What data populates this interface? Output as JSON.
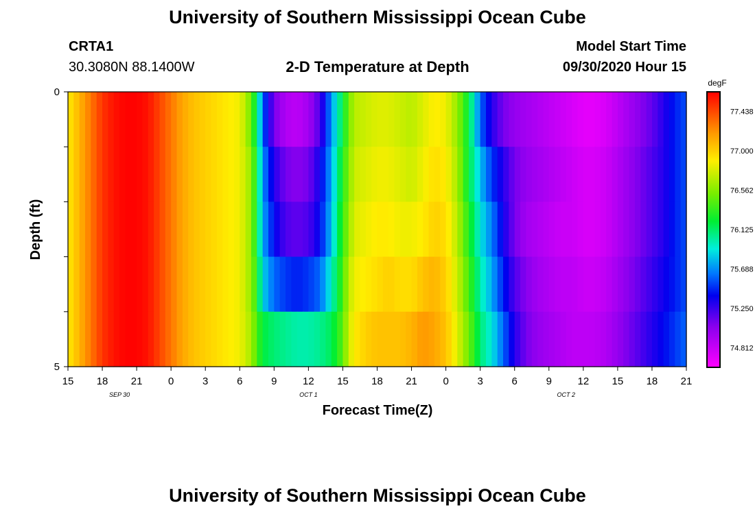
{
  "header": {
    "title": "University of Southern Mississippi Ocean Cube",
    "station_id": "CRTA1",
    "station_coords": "30.3080N 88.1400W",
    "plot_title": "2-D Temperature at Depth",
    "model_start_label": "Model Start Time",
    "model_start_value": "09/30/2020 Hour 15"
  },
  "footer": {
    "title": "University of Southern Mississippi Ocean Cube"
  },
  "chart_data": {
    "type": "heatmap",
    "title": "2-D Temperature at Depth",
    "xlabel": "Forecast Time(Z)",
    "ylabel": "Depth (ft)",
    "x_tick_labels": [
      "15",
      "18",
      "21",
      "0",
      "3",
      "6",
      "9",
      "12",
      "15",
      "18",
      "21",
      "0",
      "3",
      "6",
      "9",
      "12",
      "15",
      "18",
      "21"
    ],
    "x_date_labels": [
      {
        "label": "SEP 30",
        "hour_index": 4.5
      },
      {
        "label": "OCT 1",
        "hour_index": 21
      },
      {
        "label": "OCT 2",
        "hour_index": 43.5
      }
    ],
    "x_hours_from_start": [
      0,
      54
    ],
    "y_range": [
      0,
      5
    ],
    "y_tick_labels": [
      "0",
      "5"
    ],
    "y_minor_ticks": [
      1,
      2,
      3,
      4
    ],
    "depth_layers": [
      0,
      1,
      2,
      3,
      4
    ],
    "colorbar": {
      "unit": "degF",
      "range": [
        74.594,
        77.656
      ],
      "tick_labels": [
        "77.438",
        "77.000",
        "76.562",
        "76.125",
        "75.688",
        "75.250",
        "74.812"
      ],
      "tick_values": [
        77.438,
        77.0,
        76.562,
        76.125,
        75.688,
        75.25,
        74.812
      ]
    },
    "colors": {
      "hot": "#ff0000",
      "cold": "#ff00ff"
    },
    "temperature_profile": {
      "description_hours": [
        0,
        1,
        2,
        3,
        4,
        5,
        6,
        7,
        8,
        9,
        10,
        11,
        12,
        13,
        14,
        15,
        16,
        16.5,
        17,
        18,
        19,
        20,
        21,
        22,
        23,
        24,
        24.5,
        25,
        26,
        27,
        28,
        29,
        30,
        31,
        32,
        33,
        34,
        35,
        36,
        37,
        37.5,
        38,
        39,
        40,
        41,
        42,
        43,
        44,
        45,
        46,
        47,
        48,
        49,
        50,
        51,
        52,
        53,
        54
      ],
      "layers": [
        [
          76.9,
          77.1,
          77.3,
          77.5,
          77.6,
          77.65,
          77.65,
          77.6,
          77.45,
          77.3,
          77.15,
          77.05,
          77.0,
          76.95,
          76.9,
          76.85,
          76.5,
          76.1,
          75.6,
          75.1,
          74.9,
          74.85,
          74.95,
          75.2,
          75.7,
          76.2,
          76.5,
          76.7,
          76.75,
          76.8,
          76.8,
          76.75,
          76.7,
          76.8,
          76.9,
          76.85,
          76.6,
          76.2,
          75.6,
          75.3,
          75.2,
          75.1,
          75.0,
          74.95,
          74.9,
          74.85,
          74.8,
          74.75,
          74.7,
          74.7,
          74.75,
          74.85,
          74.95,
          75.05,
          75.15,
          75.3,
          75.45,
          75.55
        ],
        [
          76.9,
          77.1,
          77.3,
          77.5,
          77.6,
          77.65,
          77.65,
          77.6,
          77.45,
          77.3,
          77.15,
          77.05,
          77.0,
          76.95,
          76.9,
          76.85,
          76.6,
          76.2,
          75.7,
          75.3,
          75.1,
          75.05,
          75.1,
          75.35,
          75.75,
          76.3,
          76.55,
          76.75,
          76.8,
          76.85,
          76.85,
          76.8,
          76.75,
          76.85,
          76.95,
          76.9,
          76.65,
          76.2,
          75.8,
          75.5,
          75.4,
          75.3,
          75.1,
          75.0,
          74.95,
          74.9,
          74.85,
          74.8,
          74.75,
          74.75,
          74.8,
          74.9,
          75.0,
          75.1,
          75.2,
          75.3,
          75.45,
          75.55
        ],
        [
          76.9,
          77.1,
          77.3,
          77.5,
          77.6,
          77.65,
          77.65,
          77.6,
          77.45,
          77.3,
          77.15,
          77.05,
          77.0,
          76.95,
          76.9,
          76.85,
          76.6,
          76.2,
          75.75,
          75.4,
          75.2,
          75.15,
          75.2,
          75.4,
          75.8,
          76.35,
          76.6,
          76.8,
          76.85,
          76.9,
          76.9,
          76.85,
          76.85,
          76.9,
          77.0,
          76.95,
          76.7,
          76.3,
          75.9,
          75.65,
          75.5,
          75.35,
          75.1,
          74.95,
          74.9,
          74.85,
          74.8,
          74.8,
          74.75,
          74.75,
          74.8,
          74.9,
          75.0,
          75.1,
          75.2,
          75.3,
          75.45,
          75.55
        ],
        [
          76.9,
          77.1,
          77.3,
          77.5,
          77.6,
          77.65,
          77.65,
          77.6,
          77.45,
          77.3,
          77.15,
          77.05,
          77.0,
          76.95,
          76.9,
          76.85,
          76.6,
          76.3,
          75.85,
          75.6,
          75.5,
          75.45,
          75.5,
          75.6,
          75.95,
          76.4,
          76.7,
          76.85,
          76.9,
          76.95,
          77.0,
          76.95,
          76.95,
          77.05,
          77.1,
          77.0,
          76.75,
          76.4,
          76.0,
          75.75,
          75.6,
          75.45,
          75.2,
          75.05,
          74.95,
          74.9,
          74.85,
          74.85,
          74.8,
          74.8,
          74.85,
          74.95,
          75.05,
          75.15,
          75.25,
          75.35,
          75.45,
          75.55
        ],
        [
          76.9,
          77.1,
          77.3,
          77.5,
          77.6,
          77.65,
          77.65,
          77.6,
          77.45,
          77.3,
          77.15,
          77.05,
          77.0,
          76.95,
          76.9,
          76.85,
          76.65,
          76.4,
          76.2,
          76.1,
          76.05,
          76.0,
          76.0,
          76.05,
          76.15,
          76.45,
          76.75,
          76.9,
          77.0,
          77.05,
          77.05,
          77.05,
          77.1,
          77.2,
          77.15,
          77.05,
          76.8,
          76.5,
          76.1,
          75.9,
          75.75,
          75.6,
          75.3,
          75.1,
          75.0,
          74.95,
          74.9,
          74.85,
          74.85,
          74.85,
          74.9,
          75.0,
          75.1,
          75.2,
          75.3,
          75.4,
          75.5,
          75.6
        ]
      ]
    }
  }
}
